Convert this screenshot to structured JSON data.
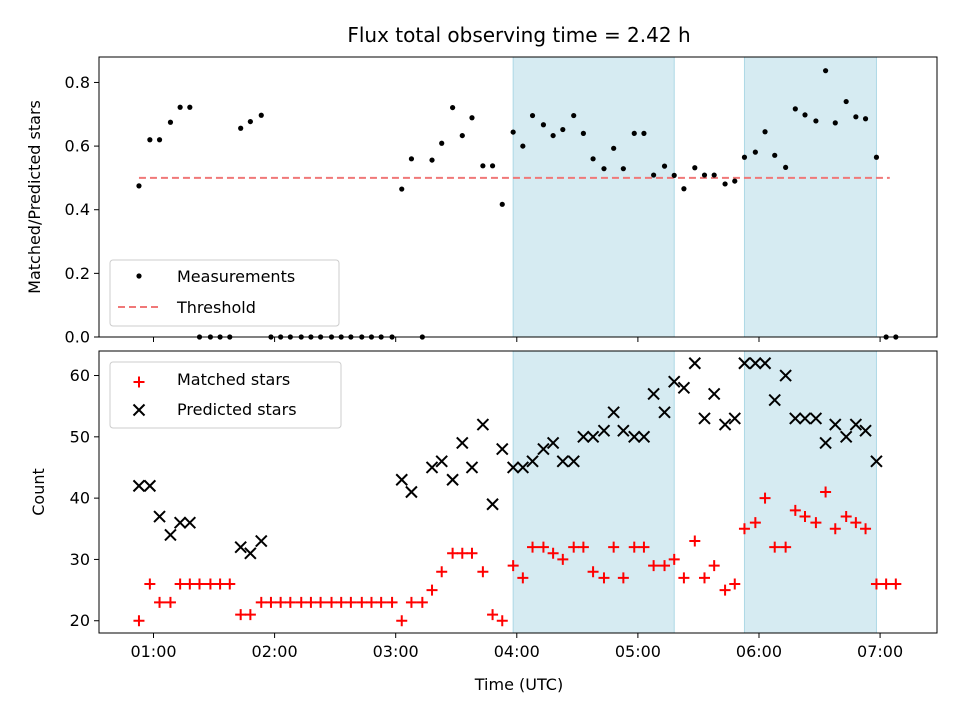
{
  "chart_data": [
    {
      "type": "scatter",
      "title": "Flux total observing time = 2.42 h",
      "ylabel": "Matched/Predicted stars",
      "xlabel": "",
      "ylim": [
        0,
        0.88
      ],
      "xlim": [
        0.55,
        7.47
      ],
      "yticks": [
        0.0,
        0.2,
        0.4,
        0.6,
        0.8
      ],
      "ytick_labels": [
        "0.0",
        "0.2",
        "0.4",
        "0.6",
        "0.8"
      ],
      "shaded_spans": [
        [
          3.97,
          5.3
        ],
        [
          5.88,
          6.97
        ]
      ],
      "legend_position": "lower-left",
      "legend": [
        {
          "label": "Measurements",
          "marker": "dot",
          "color": "#000000"
        },
        {
          "label": "Threshold",
          "marker": "dashed-line",
          "color": "#f07878"
        }
      ],
      "threshold": {
        "y": 0.5,
        "x_start": 0.88,
        "x_end": 7.08
      },
      "series": [
        {
          "name": "Measurements",
          "x": [
            0.88,
            0.97,
            1.05,
            1.14,
            1.22,
            1.3,
            1.38,
            1.47,
            1.55,
            1.63,
            1.72,
            1.8,
            1.89,
            1.97,
            2.05,
            2.13,
            2.22,
            2.3,
            2.38,
            2.47,
            2.55,
            2.63,
            2.72,
            2.8,
            2.88,
            2.97,
            3.05,
            3.13,
            3.22,
            3.3,
            3.38,
            3.47,
            3.55,
            3.63,
            3.72,
            3.8,
            3.88,
            3.97,
            4.05,
            4.13,
            4.22,
            4.3,
            4.38,
            4.47,
            4.55,
            4.63,
            4.72,
            4.8,
            4.88,
            4.97,
            5.05,
            5.13,
            5.22,
            5.3,
            5.38,
            5.47,
            5.55,
            5.63,
            5.72,
            5.8,
            5.88,
            5.97,
            6.05,
            6.13,
            6.22,
            6.3,
            6.38,
            6.47,
            6.55,
            6.63,
            6.72,
            6.8,
            6.88,
            6.97,
            7.05,
            7.13
          ],
          "y": [
            0.475,
            0.62,
            0.62,
            0.675,
            0.722,
            0.722,
            0.0,
            0.0,
            0.0,
            0.0,
            0.656,
            0.677,
            0.697,
            0.0,
            0.0,
            0.0,
            0.0,
            0.0,
            0.0,
            0.0,
            0.0,
            0.0,
            0.0,
            0.0,
            0.0,
            0.0,
            0.465,
            0.56,
            0.0,
            0.556,
            0.609,
            0.721,
            0.633,
            0.689,
            0.538,
            0.538,
            0.417,
            0.644,
            0.6,
            0.696,
            0.667,
            0.633,
            0.652,
            0.696,
            0.64,
            0.56,
            0.529,
            0.593,
            0.529,
            0.64,
            0.64,
            0.509,
            0.537,
            0.508,
            0.466,
            0.532,
            0.509,
            0.509,
            0.481,
            0.49,
            0.565,
            0.581,
            0.645,
            0.571,
            0.533,
            0.717,
            0.698,
            0.679,
            0.837,
            0.673,
            0.74,
            0.692,
            0.686,
            0.565,
            0.0,
            0.0
          ]
        }
      ]
    },
    {
      "type": "scatter",
      "title": "",
      "ylabel": "Count",
      "xlabel": "Time (UTC)",
      "ylim": [
        18,
        64
      ],
      "xlim": [
        0.55,
        7.47
      ],
      "yticks": [
        20,
        30,
        40,
        50,
        60
      ],
      "ytick_labels": [
        "20",
        "30",
        "40",
        "50",
        "60"
      ],
      "xticks": [
        1,
        2,
        3,
        4,
        5,
        6,
        7
      ],
      "xtick_labels": [
        "01:00",
        "02:00",
        "03:00",
        "04:00",
        "05:00",
        "06:00",
        "07:00"
      ],
      "shaded_spans": [
        [
          3.97,
          5.3
        ],
        [
          5.88,
          6.97
        ]
      ],
      "legend_position": "upper-left",
      "legend": [
        {
          "label": "Matched stars",
          "marker": "plus",
          "color": "#ff0000"
        },
        {
          "label": "Predicted stars",
          "marker": "x",
          "color": "#000000"
        }
      ],
      "series": [
        {
          "name": "Matched stars",
          "x": [
            0.88,
            0.97,
            1.05,
            1.14,
            1.22,
            1.3,
            1.38,
            1.47,
            1.55,
            1.63,
            1.72,
            1.8,
            1.89,
            1.97,
            2.05,
            2.13,
            2.22,
            2.3,
            2.38,
            2.47,
            2.55,
            2.63,
            2.72,
            2.8,
            2.88,
            2.97,
            3.05,
            3.13,
            3.22,
            3.3,
            3.38,
            3.47,
            3.55,
            3.63,
            3.72,
            3.8,
            3.88,
            3.97,
            4.05,
            4.13,
            4.22,
            4.3,
            4.38,
            4.47,
            4.55,
            4.63,
            4.72,
            4.8,
            4.88,
            4.97,
            5.05,
            5.13,
            5.22,
            5.3,
            5.38,
            5.47,
            5.55,
            5.63,
            5.72,
            5.8,
            5.88,
            5.97,
            6.05,
            6.13,
            6.22,
            6.3,
            6.38,
            6.47,
            6.55,
            6.63,
            6.72,
            6.8,
            6.88,
            6.97,
            7.05,
            7.13
          ],
          "y": [
            20,
            26,
            23,
            23,
            26,
            26,
            26,
            26,
            26,
            26,
            21,
            21,
            23,
            23,
            23,
            23,
            23,
            23,
            23,
            23,
            23,
            23,
            23,
            23,
            23,
            23,
            20,
            23,
            23,
            25,
            28,
            31,
            31,
            31,
            28,
            21,
            20,
            29,
            27,
            32,
            32,
            31,
            30,
            32,
            32,
            28,
            27,
            32,
            27,
            32,
            32,
            29,
            29,
            30,
            27,
            33,
            27,
            29,
            25,
            26,
            35,
            36,
            40,
            32,
            32,
            38,
            37,
            36,
            41,
            35,
            37,
            36,
            35,
            26,
            26,
            26
          ]
        },
        {
          "name": "Predicted stars",
          "x": [
            0.88,
            0.97,
            1.05,
            1.14,
            1.22,
            1.3,
            1.72,
            1.8,
            1.89,
            3.05,
            3.13,
            3.3,
            3.38,
            3.47,
            3.55,
            3.63,
            3.72,
            3.8,
            3.88,
            3.97,
            4.05,
            4.13,
            4.22,
            4.3,
            4.38,
            4.47,
            4.55,
            4.63,
            4.72,
            4.8,
            4.88,
            4.97,
            5.05,
            5.13,
            5.22,
            5.3,
            5.38,
            5.47,
            5.55,
            5.63,
            5.72,
            5.8,
            5.88,
            5.97,
            6.05,
            6.13,
            6.22,
            6.3,
            6.38,
            6.47,
            6.55,
            6.63,
            6.72,
            6.8,
            6.88,
            6.97
          ],
          "y": [
            42,
            42,
            37,
            34,
            36,
            36,
            32,
            31,
            33,
            43,
            41,
            45,
            46,
            43,
            49,
            45,
            52,
            39,
            48,
            45,
            45,
            46,
            48,
            49,
            46,
            46,
            50,
            50,
            51,
            54,
            51,
            50,
            50,
            57,
            54,
            59,
            58,
            62,
            53,
            57,
            52,
            53,
            62,
            62,
            62,
            56,
            60,
            53,
            53,
            53,
            49,
            52,
            50,
            52,
            51,
            46
          ]
        }
      ]
    }
  ]
}
